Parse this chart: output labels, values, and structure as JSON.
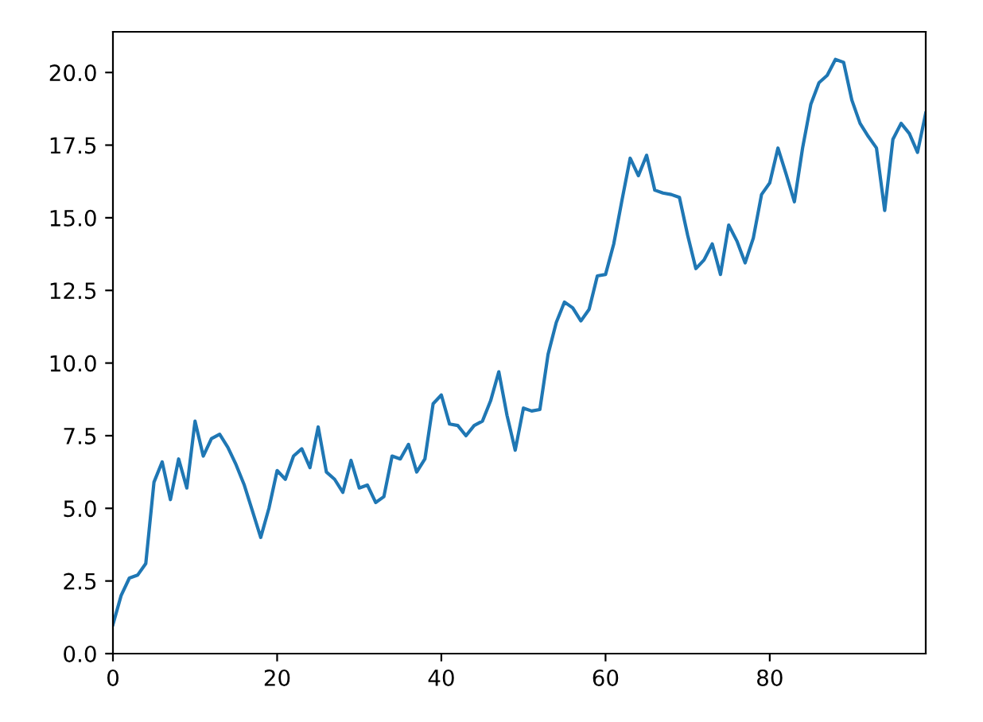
{
  "chart_data": {
    "type": "line",
    "x": [
      0,
      1,
      2,
      3,
      4,
      5,
      6,
      7,
      8,
      9,
      10,
      11,
      12,
      13,
      14,
      15,
      16,
      17,
      18,
      19,
      20,
      21,
      22,
      23,
      24,
      25,
      26,
      27,
      28,
      29,
      30,
      31,
      32,
      33,
      34,
      35,
      36,
      37,
      38,
      39,
      40,
      41,
      42,
      43,
      44,
      45,
      46,
      47,
      48,
      49,
      50,
      51,
      52,
      53,
      54,
      55,
      56,
      57,
      58,
      59,
      60,
      61,
      62,
      63,
      64,
      65,
      66,
      67,
      68,
      69,
      70,
      71,
      72,
      73,
      74,
      75,
      76,
      77,
      78,
      79,
      80,
      81,
      82,
      83,
      84,
      85,
      86,
      87,
      88,
      89,
      90,
      91,
      92,
      93,
      94,
      95,
      96,
      97,
      98,
      99
    ],
    "series": [
      {
        "color": "#1f77b4",
        "values": [
          1.0,
          2.0,
          2.6,
          2.7,
          3.1,
          5.9,
          6.6,
          5.3,
          6.7,
          5.7,
          8.0,
          6.8,
          7.4,
          7.55,
          7.1,
          6.5,
          5.8,
          4.9,
          4.0,
          5.0,
          6.3,
          6.0,
          6.8,
          7.05,
          6.4,
          7.8,
          6.25,
          6.0,
          5.55,
          6.65,
          5.7,
          5.8,
          5.2,
          5.4,
          6.8,
          6.7,
          7.2,
          6.25,
          6.7,
          8.6,
          8.9,
          7.9,
          7.85,
          7.5,
          7.85,
          8.0,
          8.7,
          9.7,
          8.2,
          7.0,
          8.45,
          8.35,
          8.4,
          10.3,
          11.4,
          12.1,
          11.9,
          11.45,
          11.85,
          13.0,
          13.05,
          14.1,
          15.6,
          17.05,
          16.45,
          17.15,
          15.95,
          15.85,
          15.8,
          15.7,
          14.4,
          13.25,
          13.55,
          14.1,
          13.05,
          14.75,
          14.2,
          13.45,
          14.3,
          15.8,
          16.2,
          17.4,
          16.5,
          15.55,
          17.4,
          18.9,
          19.65,
          19.9,
          20.45,
          20.35,
          19.05,
          18.25,
          17.8,
          17.4,
          15.25,
          17.7,
          18.25,
          17.9,
          17.25,
          18.6
        ]
      }
    ],
    "xlim": [
      0,
      99
    ],
    "xticks": [
      0,
      20,
      40,
      60,
      80
    ],
    "ylim": [
      0,
      21.4
    ],
    "yticks": [
      {
        "value": 0,
        "label": "0.0"
      },
      {
        "value": 2.5,
        "label": "2.5"
      },
      {
        "value": 5,
        "label": "5.0"
      },
      {
        "value": 7.5,
        "label": "7.5"
      },
      {
        "value": 10,
        "label": "10.0"
      },
      {
        "value": 12.5,
        "label": "12.5"
      },
      {
        "value": 15,
        "label": "15.0"
      },
      {
        "value": 17.5,
        "label": "17.5"
      },
      {
        "value": 20,
        "label": "20.0"
      }
    ]
  }
}
